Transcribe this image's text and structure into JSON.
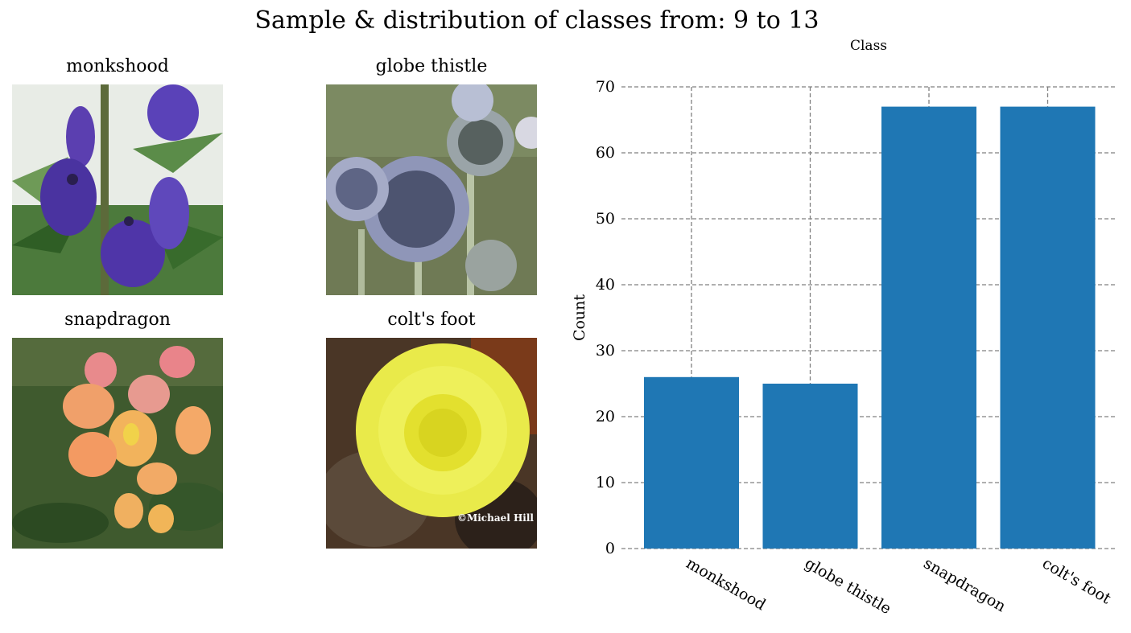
{
  "figure": {
    "title": "Sample & distribution of classes from: 9 to 13"
  },
  "samples": [
    {
      "label": "monkshood"
    },
    {
      "label": "globe thistle"
    },
    {
      "label": "snapdragon"
    },
    {
      "label": "colt's foot",
      "watermark": "©Michael Hill"
    }
  ],
  "chart_data": {
    "type": "bar",
    "title": "Class",
    "xlabel": "",
    "ylabel": "Count",
    "categories": [
      "monkshood",
      "globe thistle",
      "snapdragon",
      "colt's foot"
    ],
    "values": [
      26,
      25,
      67,
      67
    ],
    "ylim": [
      0,
      70
    ],
    "yticks": [
      0,
      10,
      20,
      30,
      40,
      50,
      60,
      70
    ],
    "grid": true,
    "bar_color": "#1f77b4",
    "grid_color": "#808080"
  }
}
